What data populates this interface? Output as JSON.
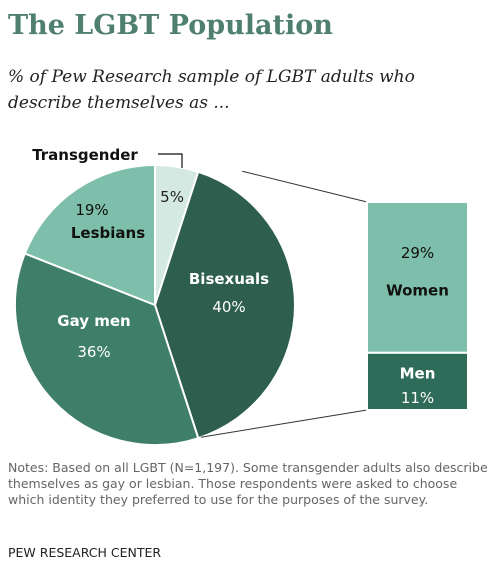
{
  "title": "The LGBT Population",
  "subtitle": "% of Pew Research sample of LGBT adults who describe themselves as ...",
  "notes": "Notes: Based on all LGBT (N=1,197). Some transgender adults also describe themselves as gay or lesbian. Those respondents were asked to choose which identity they preferred to use for the purposes of the survey.",
  "source": "PEW RESEARCH CENTER",
  "chart_data": {
    "type": "pie",
    "slices": [
      {
        "label": "Transgender",
        "value": 5,
        "value_label": "5%",
        "color": "#d3e9e2"
      },
      {
        "label": "Bisexuals",
        "value": 40,
        "value_label": "40%",
        "color": "#2e5e4e"
      },
      {
        "label": "Gay men",
        "value": 36,
        "value_label": "36%",
        "color": "#3f7e69"
      },
      {
        "label": "Lesbians",
        "value": 19,
        "value_label": "19%",
        "color": "#7dbfaa"
      }
    ],
    "breakdown": {
      "of": "Bisexuals",
      "segments": [
        {
          "label": "Women",
          "value": 29,
          "value_label": "29%",
          "color": "#7dbfaa"
        },
        {
          "label": "Men",
          "value": 11,
          "value_label": "11%",
          "color": "#2e6b58"
        }
      ]
    }
  }
}
